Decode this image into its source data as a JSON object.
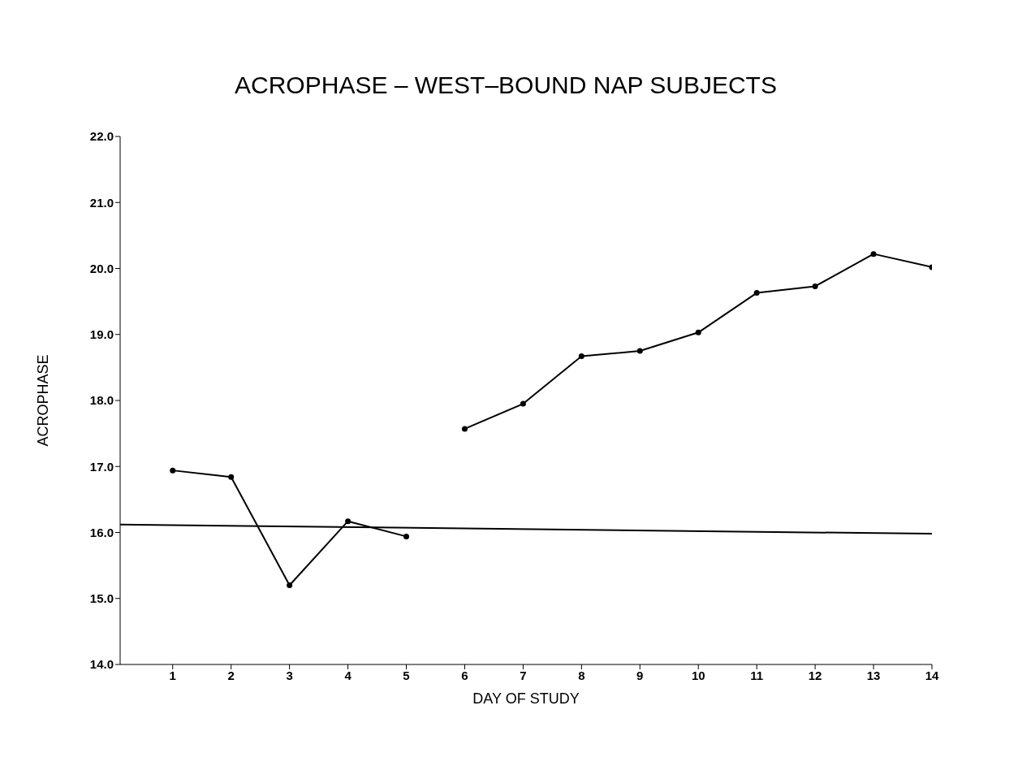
{
  "chart_data": {
    "type": "line",
    "title": "ACROPHASE – WEST–BOUND NAP SUBJECTS",
    "xlabel": "DAY OF STUDY",
    "ylabel": "ACROPHASE",
    "xlim": [
      0.1,
      14
    ],
    "xticks": [
      1,
      2,
      3,
      4,
      5,
      6,
      7,
      8,
      9,
      10,
      11,
      12,
      13,
      14
    ],
    "ylim": [
      14,
      22
    ],
    "yticks": [
      {
        "value": 14,
        "label": "14.0"
      },
      {
        "value": 15,
        "label": "15.0"
      },
      {
        "value": 16,
        "label": "16.0"
      },
      {
        "value": 17,
        "label": "17.0"
      },
      {
        "value": 18,
        "label": "18.0"
      },
      {
        "value": 19,
        "label": "19.0"
      },
      {
        "value": 20,
        "label": "20.0"
      },
      {
        "value": 21,
        "label": "21.0"
      },
      {
        "value": 22,
        "label": "22.0"
      }
    ],
    "grid": false,
    "legend": false,
    "marker": "circle",
    "line_style": "solid",
    "series": [
      {
        "color": "#000000",
        "x": [
          1,
          2,
          3,
          4,
          5
        ],
        "values": [
          16.94,
          16.84,
          15.2,
          16.17,
          15.94
        ]
      },
      {
        "color": "#000000",
        "x": [
          6,
          7,
          8,
          9,
          10,
          11,
          12,
          13,
          14
        ],
        "values": [
          17.57,
          17.95,
          18.67,
          18.75,
          19.03,
          19.63,
          19.73,
          20.22,
          20.02
        ]
      },
      {
        "color": "#000000",
        "marker": "none",
        "x": [
          0.1,
          14
        ],
        "values": [
          16.12,
          15.98
        ]
      }
    ]
  }
}
